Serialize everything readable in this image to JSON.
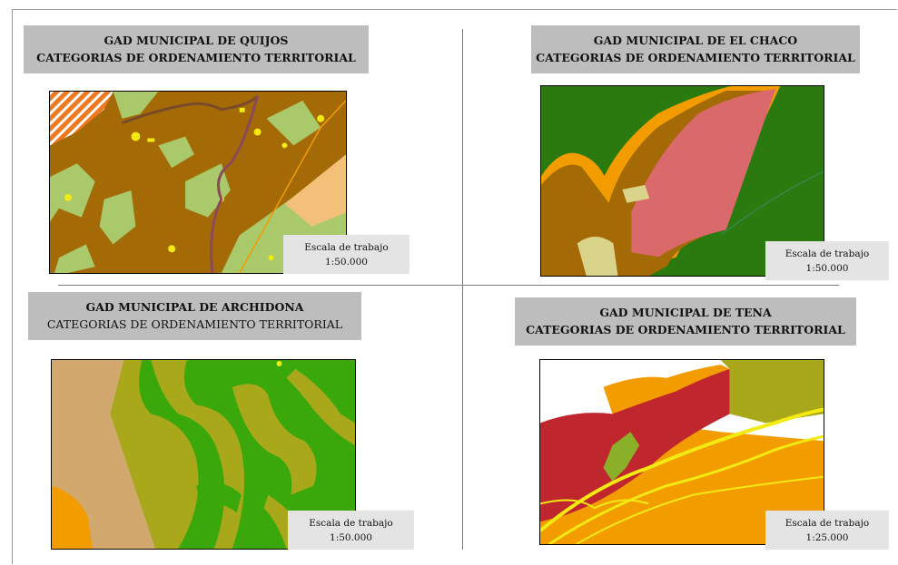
{
  "panels": [
    {
      "title": "GAD MUNICIPAL DE QUIJOS",
      "subtitle": "CATEGORIAS DE ORDENAMIENTO TERRITORIAL",
      "scale_label": "Escala de trabajo",
      "scale_value": "1:50.000"
    },
    {
      "title": "GAD MUNICIPAL DE EL CHACO",
      "subtitle": "CATEGORIAS DE ORDENAMIENTO TERRITORIAL",
      "scale_label": "Escala de trabajo",
      "scale_value": "1:50.000"
    },
    {
      "title": "GAD MUNICIPAL DE ARCHIDONA",
      "subtitle": "CATEGORIAS DE ORDENAMIENTO TERRITORIAL",
      "scale_label": "Escala de trabajo",
      "scale_value": "1:50.000"
    },
    {
      "title": "GAD MUNICIPAL DE TENA",
      "subtitle": "CATEGORIAS DE ORDENAMIENTO TERRITORIAL",
      "scale_label": "Escala de trabajo",
      "scale_value": "1:25.000"
    }
  ],
  "colors": {
    "title_bg": "#bdbdbd",
    "scale_bg": "#e4e4e4",
    "brown": "#a36a06",
    "olive_light": "#a9c96a",
    "yellow": "#f2ea10",
    "orange": "#f29c00",
    "pink": "#d9696b",
    "dark_green": "#2a7a10",
    "bright_green": "#3aa80a",
    "olive": "#a8a81a",
    "tan": "#d2a86e",
    "red": "#c0262e",
    "white": "#ffffff"
  }
}
